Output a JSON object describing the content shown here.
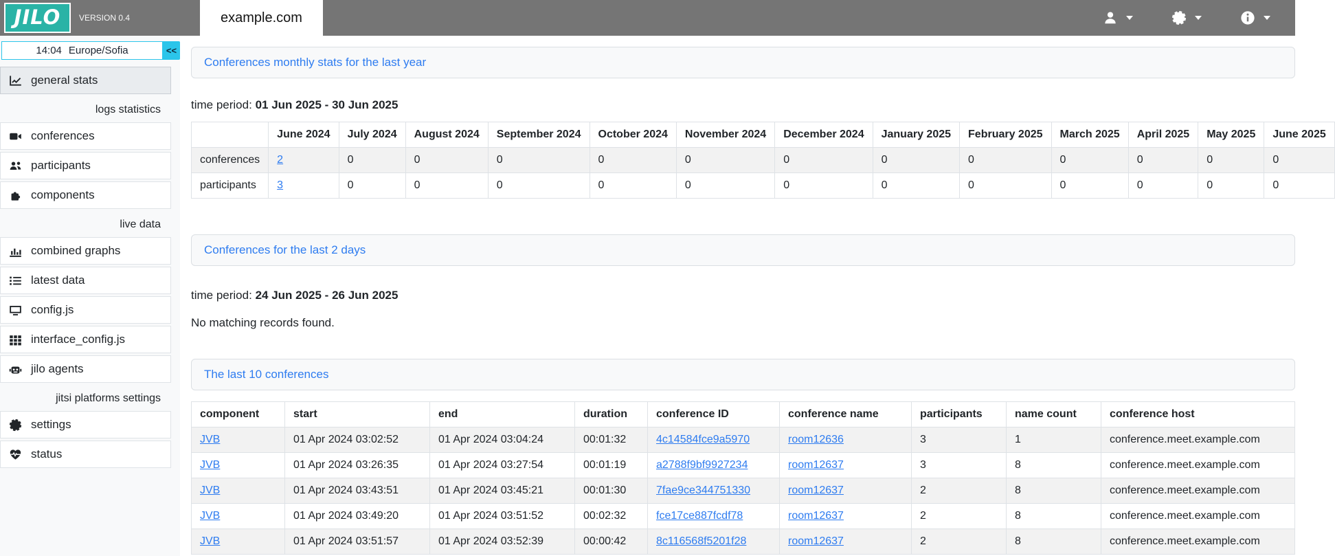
{
  "colors": {
    "topbar_gray": "#757575",
    "brand_teal": "#2ab3a6",
    "clock_cyan": "#2bc5ea",
    "link_blue": "#2e7cf0"
  },
  "header": {
    "logo": "JILO",
    "version": "VERSION 0.4",
    "tab": "example.com",
    "menus": [
      "user",
      "gear",
      "info"
    ]
  },
  "sidebar": {
    "clock": {
      "time": "14:04",
      "timezone": "Europe/Sofia",
      "collapse_label": "<<"
    },
    "entries": [
      {
        "type": "item",
        "icon": "chart-line",
        "label": "general stats",
        "active": true
      },
      {
        "type": "section",
        "label": "logs statistics"
      },
      {
        "type": "item",
        "icon": "video-camera",
        "label": "conferences"
      },
      {
        "type": "item",
        "icon": "users",
        "label": "participants"
      },
      {
        "type": "item",
        "icon": "puzzle-piece",
        "label": "components"
      },
      {
        "type": "section",
        "label": "live data"
      },
      {
        "type": "item",
        "icon": "bar-chart",
        "label": "combined graphs"
      },
      {
        "type": "item",
        "icon": "list",
        "label": "latest data"
      },
      {
        "type": "item",
        "icon": "display",
        "label": "config.js"
      },
      {
        "type": "item",
        "icon": "grid",
        "label": "interface_config.js"
      },
      {
        "type": "item",
        "icon": "robot",
        "label": "jilo agents"
      },
      {
        "type": "section",
        "label": "jitsi platforms settings"
      },
      {
        "type": "item",
        "icon": "gear",
        "label": "settings"
      },
      {
        "type": "item",
        "icon": "heart-pulse",
        "label": "status"
      }
    ]
  },
  "sections": {
    "monthly": {
      "title": "Conferences monthly stats for the last year",
      "time_period_label": "time period:",
      "time_period": "01 Jun 2025 - 30 Jun 2025",
      "table": {
        "columns": [
          "",
          "June 2024",
          "July 2024",
          "August 2024",
          "September 2024",
          "October 2024",
          "November 2024",
          "December 2024",
          "January 2025",
          "February 2025",
          "March 2025",
          "April 2025",
          "May 2025",
          "June 2025"
        ],
        "rows": [
          {
            "cells": [
              {
                "text": "conferences"
              },
              {
                "text": "2",
                "link": true
              },
              {
                "text": "0"
              },
              {
                "text": "0"
              },
              {
                "text": "0"
              },
              {
                "text": "0"
              },
              {
                "text": "0"
              },
              {
                "text": "0"
              },
              {
                "text": "0"
              },
              {
                "text": "0"
              },
              {
                "text": "0"
              },
              {
                "text": "0"
              },
              {
                "text": "0"
              },
              {
                "text": "0"
              }
            ]
          },
          {
            "cells": [
              {
                "text": "participants"
              },
              {
                "text": "3",
                "link": true
              },
              {
                "text": "0"
              },
              {
                "text": "0"
              },
              {
                "text": "0"
              },
              {
                "text": "0"
              },
              {
                "text": "0"
              },
              {
                "text": "0"
              },
              {
                "text": "0"
              },
              {
                "text": "0"
              },
              {
                "text": "0"
              },
              {
                "text": "0"
              },
              {
                "text": "0"
              },
              {
                "text": "0"
              }
            ]
          }
        ]
      }
    },
    "last_2_days": {
      "title": "Conferences for the last 2 days",
      "time_period_label": "time period:",
      "time_period": "24 Jun 2025 - 26 Jun 2025",
      "empty_message": "No matching records found."
    },
    "last_10": {
      "title": "The last 10 conferences",
      "table": {
        "columns": [
          "component",
          "start",
          "end",
          "duration",
          "conference ID",
          "conference name",
          "participants",
          "name count",
          "conference host"
        ],
        "rows": [
          {
            "cells": [
              {
                "text": "JVB",
                "link": true
              },
              {
                "text": "01 Apr 2024 03:02:52"
              },
              {
                "text": "01 Apr 2024 03:04:24"
              },
              {
                "text": "00:01:32"
              },
              {
                "text": "4c14584fce9a5970",
                "link": true
              },
              {
                "text": "room12636",
                "link": true
              },
              {
                "text": "3"
              },
              {
                "text": "1"
              },
              {
                "text": "conference.meet.example.com"
              }
            ]
          },
          {
            "cells": [
              {
                "text": "JVB",
                "link": true
              },
              {
                "text": "01 Apr 2024 03:26:35"
              },
              {
                "text": "01 Apr 2024 03:27:54"
              },
              {
                "text": "00:01:19"
              },
              {
                "text": "a2788f9bf9927234",
                "link": true
              },
              {
                "text": "room12637",
                "link": true
              },
              {
                "text": "3"
              },
              {
                "text": "8"
              },
              {
                "text": "conference.meet.example.com"
              }
            ]
          },
          {
            "cells": [
              {
                "text": "JVB",
                "link": true
              },
              {
                "text": "01 Apr 2024 03:43:51"
              },
              {
                "text": "01 Apr 2024 03:45:21"
              },
              {
                "text": "00:01:30"
              },
              {
                "text": "7fae9ce344751330",
                "link": true
              },
              {
                "text": "room12637",
                "link": true
              },
              {
                "text": "2"
              },
              {
                "text": "8"
              },
              {
                "text": "conference.meet.example.com"
              }
            ]
          },
          {
            "cells": [
              {
                "text": "JVB",
                "link": true
              },
              {
                "text": "01 Apr 2024 03:49:20"
              },
              {
                "text": "01 Apr 2024 03:51:52"
              },
              {
                "text": "00:02:32"
              },
              {
                "text": "fce17ce887fcdf78",
                "link": true
              },
              {
                "text": "room12637",
                "link": true
              },
              {
                "text": "2"
              },
              {
                "text": "8"
              },
              {
                "text": "conference.meet.example.com"
              }
            ]
          },
          {
            "cells": [
              {
                "text": "JVB",
                "link": true
              },
              {
                "text": "01 Apr 2024 03:51:57"
              },
              {
                "text": "01 Apr 2024 03:52:39"
              },
              {
                "text": "00:00:42"
              },
              {
                "text": "8c116568f5201f28",
                "link": true
              },
              {
                "text": "room12637",
                "link": true
              },
              {
                "text": "2"
              },
              {
                "text": "8"
              },
              {
                "text": "conference.meet.example.com"
              }
            ]
          }
        ]
      }
    }
  }
}
